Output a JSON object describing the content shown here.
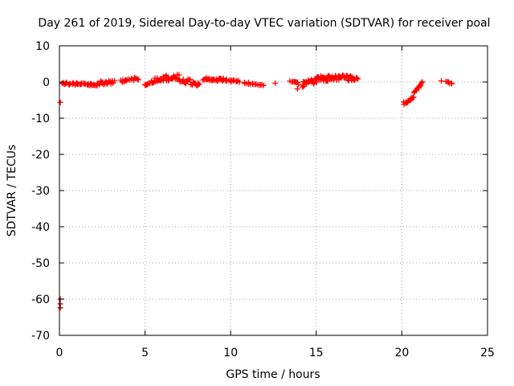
{
  "chart_data": {
    "type": "scatter",
    "title": "Day 261 of 2019, Sidereal Day-to-day VTEC variation (SDTVAR) for receiver poal",
    "xlabel": "GPS time / hours",
    "ylabel": "SDTVAR / TECUs",
    "xlim": [
      0,
      25
    ],
    "ylim": [
      -70,
      10
    ],
    "xticks": [
      0,
      5,
      10,
      15,
      20,
      25
    ],
    "yticks": [
      10,
      0,
      -10,
      -20,
      -30,
      -40,
      -50,
      -60,
      -70
    ],
    "grid": true,
    "marker": "plus",
    "color": "#ff0000",
    "segments": [
      {
        "x0": 0.2,
        "x1": 1.7,
        "y0": -0.3,
        "y1": -0.7,
        "spread": 0.6,
        "n": 30
      },
      {
        "x0": 1.7,
        "x1": 2.5,
        "y0": -0.8,
        "y1": -0.5,
        "spread": 0.7,
        "n": 16
      },
      {
        "x0": 2.4,
        "x1": 3.2,
        "y0": -0.3,
        "y1": 0.2,
        "spread": 1.2,
        "n": 18
      },
      {
        "x0": 3.6,
        "x1": 4.6,
        "y0": 0.2,
        "y1": 1.0,
        "spread": 0.8,
        "n": 18
      },
      {
        "x0": 5.0,
        "x1": 5.6,
        "y0": -0.6,
        "y1": 0.3,
        "spread": 0.8,
        "n": 12
      },
      {
        "x0": 5.6,
        "x1": 7.0,
        "y0": 0.8,
        "y1": 1.5,
        "spread": 1.5,
        "n": 34
      },
      {
        "x0": 7.0,
        "x1": 8.2,
        "y0": 0.5,
        "y1": -0.6,
        "spread": 1.6,
        "n": 30
      },
      {
        "x0": 8.4,
        "x1": 9.6,
        "y0": 0.8,
        "y1": 0.6,
        "spread": 0.9,
        "n": 28
      },
      {
        "x0": 9.6,
        "x1": 10.5,
        "y0": 0.5,
        "y1": 0.1,
        "spread": 0.6,
        "n": 14
      },
      {
        "x0": 10.8,
        "x1": 11.3,
        "y0": -0.2,
        "y1": -0.5,
        "spread": 0.5,
        "n": 8
      },
      {
        "x0": 11.3,
        "x1": 11.9,
        "y0": -0.6,
        "y1": -0.9,
        "spread": 0.4,
        "n": 8
      },
      {
        "x0": 13.5,
        "x1": 14.0,
        "y0": 0.2,
        "y1": -0.5,
        "spread": 0.6,
        "n": 8
      },
      {
        "x0": 14.2,
        "x1": 15.0,
        "y0": -0.5,
        "y1": 0.3,
        "spread": 1.5,
        "n": 20
      },
      {
        "x0": 15.0,
        "x1": 16.3,
        "y0": 0.8,
        "y1": 1.2,
        "spread": 1.5,
        "n": 36
      },
      {
        "x0": 16.3,
        "x1": 17.4,
        "y0": 1.3,
        "y1": 0.8,
        "spread": 1.4,
        "n": 30
      },
      {
        "x0": 20.1,
        "x1": 20.7,
        "y0": -5.9,
        "y1": -4.3,
        "spread": 0.6,
        "n": 14
      },
      {
        "x0": 20.7,
        "x1": 21.2,
        "y0": -3.0,
        "y1": -0.1,
        "spread": 0.4,
        "n": 12
      },
      {
        "x0": 22.6,
        "x1": 22.9,
        "y0": 0.0,
        "y1": -0.4,
        "spread": 0.4,
        "n": 6
      }
    ],
    "points": [
      {
        "x": 0.05,
        "y": -5.6
      },
      {
        "x": 0.05,
        "y": -60.0
      },
      {
        "x": 0.05,
        "y": -61.3
      },
      {
        "x": 0.05,
        "y": -62.4
      },
      {
        "x": 3.7,
        "y": 0.1
      },
      {
        "x": 12.6,
        "y": -0.3
      },
      {
        "x": 13.9,
        "y": -1.9
      },
      {
        "x": 14.2,
        "y": -1.4
      },
      {
        "x": 17.4,
        "y": 0.9
      },
      {
        "x": 22.3,
        "y": 0.3
      }
    ]
  }
}
